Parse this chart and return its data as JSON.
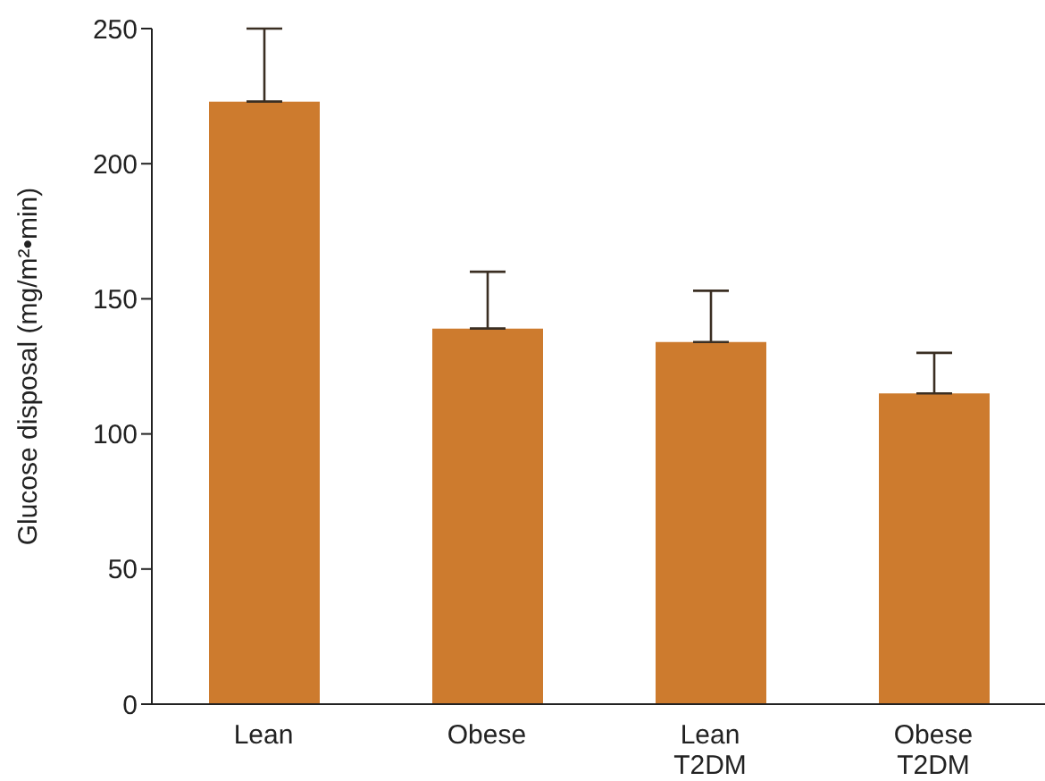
{
  "chart_data": {
    "type": "bar",
    "ylabel": "Glucose disposal (mg/m²•min)",
    "categories": [
      "Lean",
      "Obese",
      "Lean\nT2DM",
      "Obese\nT2DM"
    ],
    "values": [
      223,
      139,
      134,
      115
    ],
    "errors": [
      [
        223,
        250
      ],
      [
        139,
        160
      ],
      [
        134,
        153
      ],
      [
        115,
        130
      ]
    ],
    "color": "#cd7b2e",
    "ylim": [
      0,
      250
    ],
    "yticks": [
      0,
      50,
      100,
      150,
      200,
      250
    ]
  }
}
